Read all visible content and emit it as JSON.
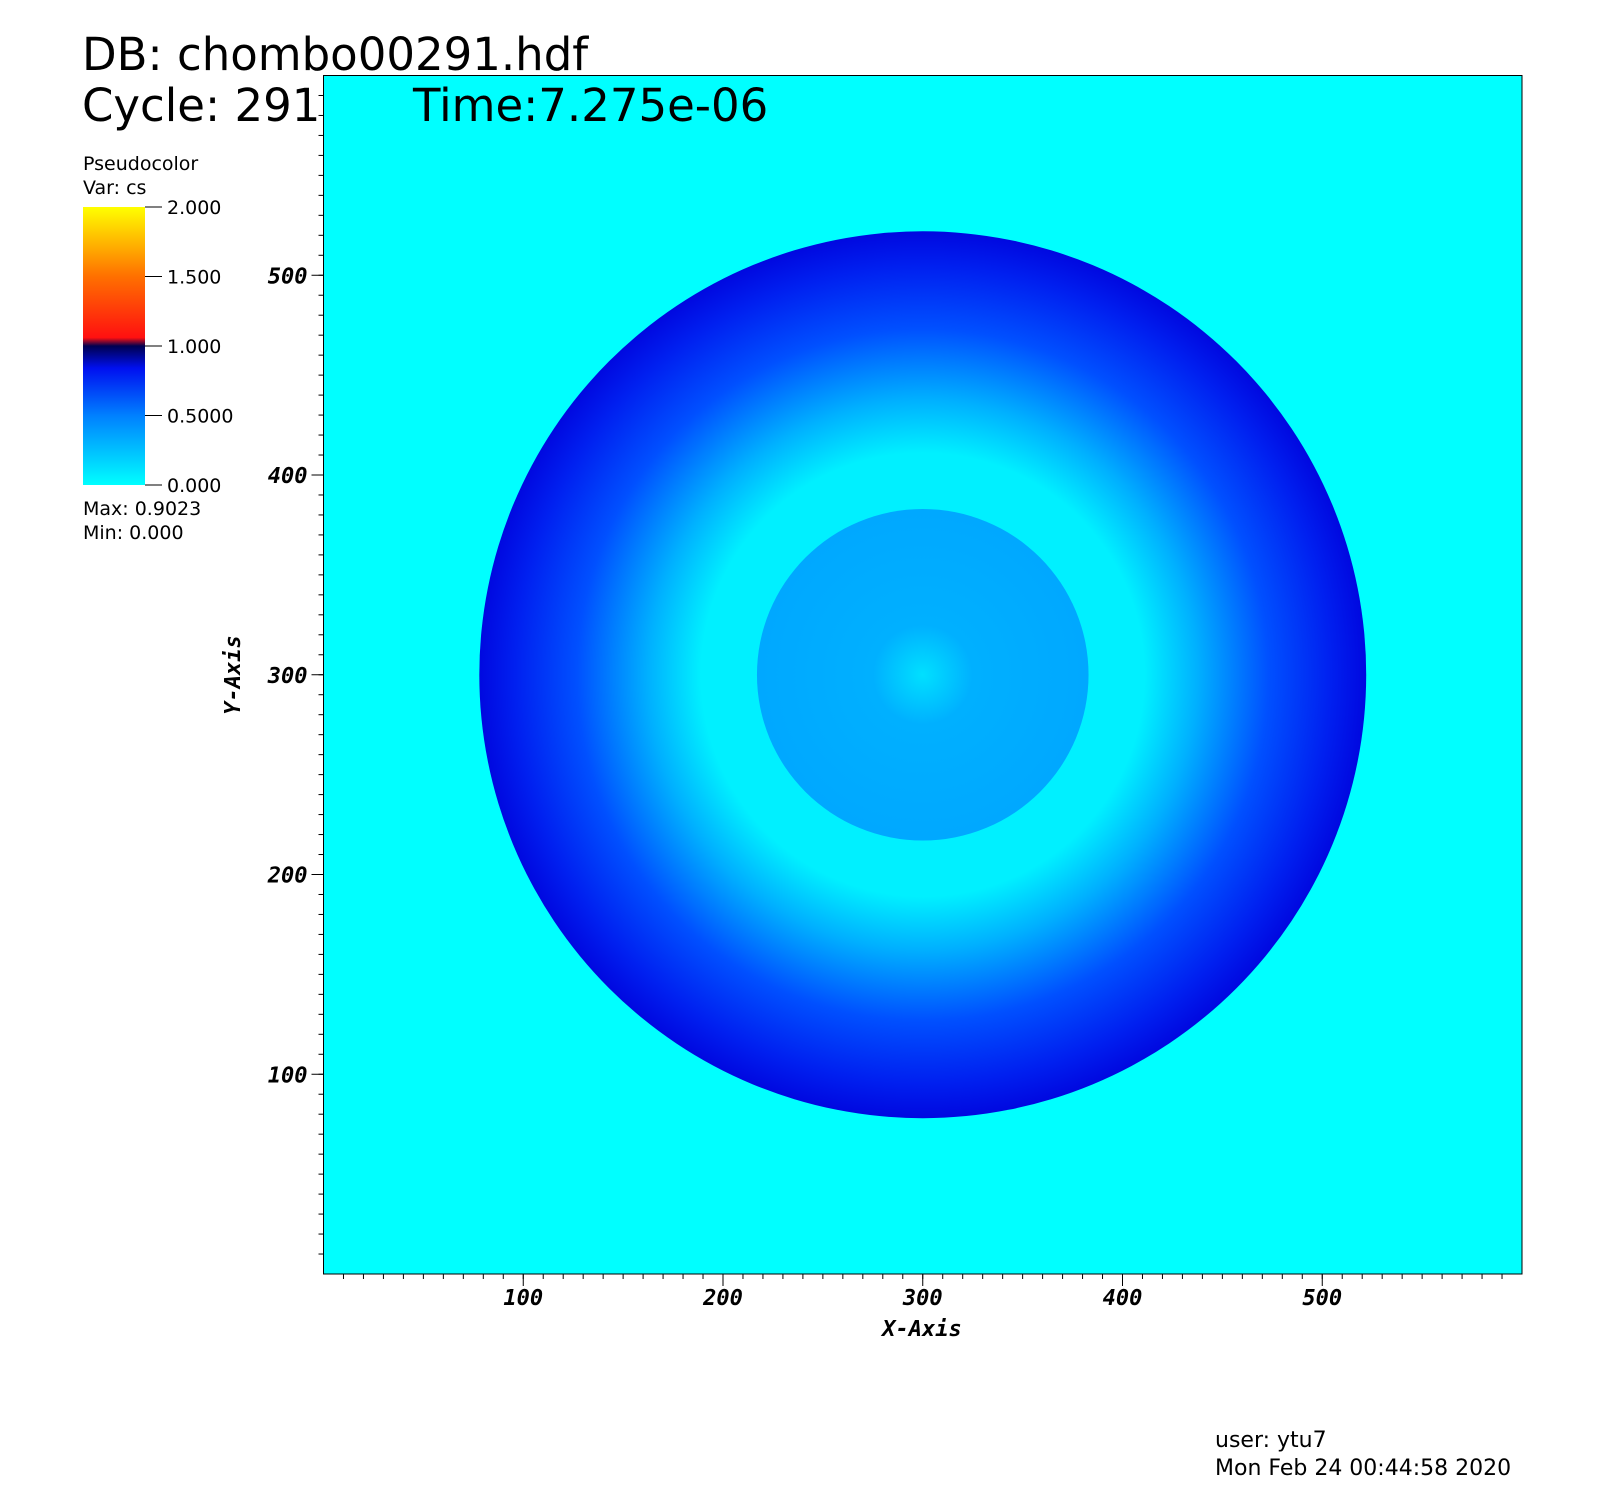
{
  "header": {
    "database": "DB: chombo00291.hdf",
    "cycle": "Cycle: 291",
    "time": "Time:7.275e-06"
  },
  "chart_data": {
    "type": "pseudocolor",
    "legend": {
      "title": "Pseudocolor",
      "variable": "Var: cs",
      "clim": [
        0,
        2
      ],
      "ticks": [
        {
          "value": 2,
          "label": "2.000"
        },
        {
          "value": 1.5,
          "label": "1.500"
        },
        {
          "value": 1,
          "label": "1.000"
        },
        {
          "value": 0.5,
          "label": "0.5000"
        },
        {
          "value": 0,
          "label": "0.000"
        }
      ],
      "max": "Max:  0.9023",
      "min": "Min:  0.000"
    },
    "xlabel": "X-Axis",
    "ylabel": "Y-Axis",
    "xlim": [
      0,
      600
    ],
    "ylim": [
      0,
      600
    ],
    "xticks": [
      100,
      200,
      300,
      400,
      500
    ],
    "yticks": [
      100,
      200,
      300,
      400,
      500
    ],
    "center": [
      300,
      300
    ],
    "outer_radius": 222,
    "inner_radius": 83
  },
  "footer": {
    "user": "user: ytu7",
    "date": "Mon Feb 24 00:44:58 2020"
  }
}
